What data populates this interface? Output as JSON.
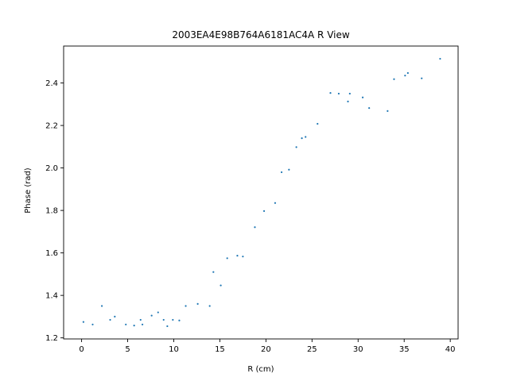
{
  "chart_data": {
    "type": "scatter",
    "title": "2003EA4E98B764A6181AC4A R View",
    "xlabel": "R (cm)",
    "ylabel": "Phase (rad)",
    "xlim": [
      -1.95,
      40.85
    ],
    "ylim": [
      1.195,
      2.574
    ],
    "xticks": [
      0,
      5,
      10,
      15,
      20,
      25,
      30,
      35,
      40
    ],
    "yticks": [
      1.2,
      1.4,
      1.6,
      1.8,
      2.0,
      2.2,
      2.4
    ],
    "xtick_labels": [
      "0",
      "5",
      "10",
      "15",
      "20",
      "25",
      "30",
      "35",
      "40"
    ],
    "ytick_labels": [
      "1.2",
      "1.4",
      "1.6",
      "1.8",
      "2.0",
      "2.2",
      "2.4"
    ],
    "grid": false,
    "marker_color": "#1f77b4",
    "series": [
      {
        "points": [
          [
            0.2,
            1.275
          ],
          [
            1.2,
            1.263
          ],
          [
            2.2,
            1.35
          ],
          [
            3.1,
            1.285
          ],
          [
            3.6,
            1.3
          ],
          [
            4.8,
            1.263
          ],
          [
            5.7,
            1.258
          ],
          [
            6.4,
            1.285
          ],
          [
            6.6,
            1.263
          ],
          [
            7.6,
            1.305
          ],
          [
            8.3,
            1.32
          ],
          [
            8.9,
            1.285
          ],
          [
            9.3,
            1.255
          ],
          [
            9.9,
            1.285
          ],
          [
            10.6,
            1.282
          ],
          [
            11.3,
            1.35
          ],
          [
            12.6,
            1.36
          ],
          [
            13.9,
            1.35
          ],
          [
            14.3,
            1.51
          ],
          [
            15.1,
            1.447
          ],
          [
            15.8,
            1.575
          ],
          [
            16.9,
            1.587
          ],
          [
            17.5,
            1.583
          ],
          [
            18.8,
            1.721
          ],
          [
            19.8,
            1.797
          ],
          [
            21.0,
            1.835
          ],
          [
            21.7,
            1.98
          ],
          [
            22.5,
            1.992
          ],
          [
            23.3,
            2.098
          ],
          [
            23.9,
            2.14
          ],
          [
            24.3,
            2.146
          ],
          [
            25.6,
            2.208
          ],
          [
            27.0,
            2.353
          ],
          [
            27.9,
            2.35
          ],
          [
            28.9,
            2.313
          ],
          [
            29.1,
            2.35
          ],
          [
            30.5,
            2.332
          ],
          [
            31.2,
            2.282
          ],
          [
            33.2,
            2.268
          ],
          [
            33.9,
            2.418
          ],
          [
            35.1,
            2.435
          ],
          [
            35.4,
            2.447
          ],
          [
            36.9,
            2.422
          ],
          [
            38.9,
            2.514
          ]
        ]
      }
    ]
  }
}
